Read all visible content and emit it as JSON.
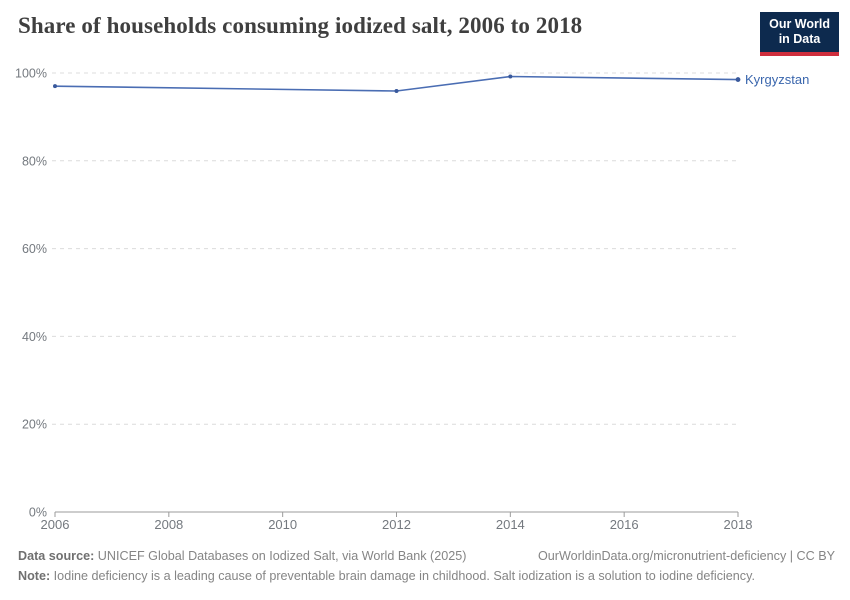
{
  "header": {
    "title": "Share of households consuming iodized salt, 2006 to 2018",
    "logo": {
      "line1": "Our World",
      "line2": "in Data"
    }
  },
  "chart_data": {
    "type": "line",
    "title": "Share of households consuming iodized salt, 2006 to 2018",
    "xlabel": "",
    "ylabel": "",
    "xlim": [
      2006,
      2018
    ],
    "ylim": [
      0,
      100
    ],
    "x_ticks": [
      2006,
      2008,
      2010,
      2012,
      2014,
      2016,
      2018
    ],
    "y_ticks": [
      0,
      20,
      40,
      60,
      80,
      100
    ],
    "y_tick_suffix": "%",
    "grid": "dashed-horizontal",
    "legend_position": "end-of-line-label",
    "series": [
      {
        "name": "Kyrgyzstan",
        "x": [
          2006,
          2012,
          2014,
          2018
        ],
        "values": [
          97,
          95.9,
          99.2,
          98.5
        ]
      }
    ]
  },
  "footer": {
    "datasource_label": "Data source:",
    "datasource_text": " UNICEF Global Databases on Iodized Salt, via World Bank (2025)",
    "link_text": "OurWorldinData.org/micronutrient-deficiency | CC BY",
    "note_label": "Note:",
    "note_text": " Iodine deficiency is a leading cause of preventable brain damage in childhood. Salt iodization is a solution to iodine deficiency."
  },
  "colors": {
    "line": "#4a6db3",
    "marker": "#39599c",
    "entity_label": "#3a66ad",
    "grid": "#dcdcdc",
    "axis": "#9b9b9b",
    "tick_label": "#74797f",
    "title": "#3f3f3f",
    "logo_bg": "#0d2a4e",
    "logo_red": "#cf2e3d",
    "footer_text": "#858585"
  }
}
